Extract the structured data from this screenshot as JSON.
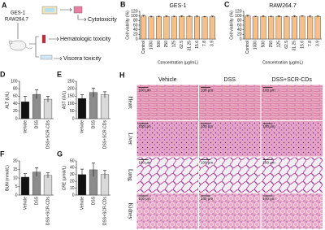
{
  "panel_a": {
    "label": "A",
    "cells": [
      "GES-1",
      "RAW264.7"
    ],
    "outcomes": [
      "Cytotoxicity",
      "Hematologic toxicity",
      "Viscera toxicity"
    ]
  },
  "chart_data": [
    {
      "type": "bar",
      "label": "B",
      "title": "GES-1",
      "y_label": "Cell viability (%)",
      "x_label": "Concentration (μg/mL)",
      "categories": [
        "Control",
        "1000",
        "500",
        "250",
        "125",
        "62.5",
        "31.25",
        "15.6",
        "7.8",
        "3.9"
      ],
      "values": [
        100,
        96,
        97,
        98,
        97,
        98,
        98,
        97,
        96,
        97
      ],
      "errors": [
        3,
        3,
        2,
        3,
        2,
        3,
        2,
        3,
        2,
        3
      ],
      "colors": [
        "#f5c08a",
        "#f5c08a",
        "#f5c08a",
        "#f5c08a",
        "#f5c08a",
        "#f5c08a",
        "#f5c08a",
        "#f5c08a",
        "#f5c08a",
        "#f5c08a"
      ],
      "ylim": [
        0,
        120
      ],
      "yticks": [
        0,
        20,
        40,
        60,
        80,
        100,
        120
      ]
    },
    {
      "type": "bar",
      "label": "C",
      "title": "RAW264.7",
      "y_label": "Cell viability (%)",
      "x_label": "Concentration (μg/mL)",
      "categories": [
        "Control",
        "1000",
        "500",
        "250",
        "125",
        "62.5",
        "31.25",
        "15.6",
        "7.8",
        "3.9"
      ],
      "values": [
        100,
        97,
        98,
        97,
        98,
        97,
        98,
        99,
        97,
        98
      ],
      "errors": [
        3,
        2,
        3,
        2,
        3,
        2,
        3,
        2,
        3,
        2
      ],
      "colors": [
        "#f5c08a",
        "#f5c08a",
        "#f5c08a",
        "#f5c08a",
        "#f5c08a",
        "#f5c08a",
        "#f5c08a",
        "#f5c08a",
        "#f5c08a",
        "#f5c08a"
      ],
      "ylim": [
        0,
        120
      ],
      "yticks": [
        0,
        20,
        40,
        60,
        80,
        100,
        120
      ]
    },
    {
      "type": "bar",
      "label": "D",
      "y_label": "ALT (U/L)",
      "categories": [
        "Vehicle",
        "DSS",
        "DSS+SCR-CDs"
      ],
      "values": [
        45,
        65,
        52
      ],
      "errors": [
        15,
        12,
        8
      ],
      "colors": [
        "#111111",
        "#8c8c8c",
        "#d9d9d9"
      ],
      "ylim": [
        0,
        100
      ],
      "yticks": [
        0,
        20,
        40,
        60,
        80,
        100
      ]
    },
    {
      "type": "bar",
      "label": "E",
      "y_label": "AST (U/L)",
      "categories": [
        "Vehicle",
        "DSS",
        "DSS+SCR-CDs"
      ],
      "values": [
        135,
        175,
        160
      ],
      "errors": [
        25,
        30,
        20
      ],
      "colors": [
        "#111111",
        "#8c8c8c",
        "#d9d9d9"
      ],
      "ylim": [
        0,
        250
      ],
      "yticks": [
        0,
        50,
        100,
        150,
        200,
        250
      ]
    },
    {
      "type": "bar",
      "label": "F",
      "y_label": "BUN (mmol/L)",
      "categories": [
        "Vehicle",
        "DSS",
        "DSS+SCR-CDs"
      ],
      "values": [
        10.5,
        13.5,
        11.5
      ],
      "errors": [
        2,
        2.5,
        1.5
      ],
      "colors": [
        "#111111",
        "#8c8c8c",
        "#d9d9d9"
      ],
      "ylim": [
        0,
        20
      ],
      "yticks": [
        0,
        5,
        10,
        15,
        20
      ]
    },
    {
      "type": "bar",
      "label": "G",
      "y_label": "CRE (μmol/L)",
      "categories": [
        "Vehicle",
        "DSS",
        "DSS+SCR-CDs"
      ],
      "values": [
        30,
        37,
        30
      ],
      "errors": [
        8,
        10,
        6
      ],
      "colors": [
        "#111111",
        "#8c8c8c",
        "#d9d9d9"
      ],
      "ylim": [
        0,
        50
      ],
      "yticks": [
        0,
        10,
        20,
        30,
        40,
        50
      ]
    }
  ],
  "panel_h": {
    "label": "H",
    "columns": [
      "Vehicle",
      "DSS",
      "DSS+SCR-CDs"
    ],
    "rows": [
      "Heart",
      "Liver",
      "Lung",
      "Kidney"
    ],
    "scale_bar": "100 μm"
  }
}
